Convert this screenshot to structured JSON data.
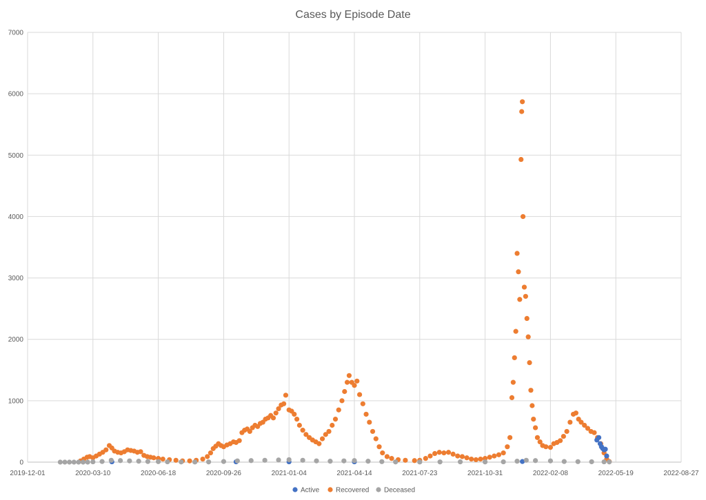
{
  "chart_data": {
    "type": "scatter",
    "title": "Cases by Episode Date",
    "x_ticks": [
      "2019-12-01",
      "2020-03-10",
      "2020-06-18",
      "2020-09-26",
      "2021-01-04",
      "2021-04-14",
      "2021-07-23",
      "2021-10-31",
      "2022-02-08",
      "2022-05-19",
      "2022-08-27"
    ],
    "y_ticks": [
      "0",
      "1000",
      "2000",
      "3000",
      "4000",
      "5000",
      "6000",
      "7000"
    ],
    "xlim": [
      "2019-12-01",
      "2022-08-27"
    ],
    "ylim": [
      0,
      7000
    ],
    "grid": true,
    "legend_position": "bottom",
    "colors": {
      "Active": "#4472c4",
      "Recovered": "#ed7d31",
      "Deceased": "#a5a5a5"
    },
    "series": [
      {
        "name": "Recovered",
        "points": [
          [
            "2020-02-20",
            20
          ],
          [
            "2020-02-25",
            50
          ],
          [
            "2020-03-01",
            80
          ],
          [
            "2020-03-05",
            90
          ],
          [
            "2020-03-10",
            70
          ],
          [
            "2020-03-15",
            100
          ],
          [
            "2020-03-20",
            130
          ],
          [
            "2020-03-25",
            160
          ],
          [
            "2020-03-30",
            200
          ],
          [
            "2020-04-04",
            270
          ],
          [
            "2020-04-08",
            230
          ],
          [
            "2020-04-12",
            180
          ],
          [
            "2020-04-17",
            160
          ],
          [
            "2020-04-22",
            150
          ],
          [
            "2020-04-27",
            170
          ],
          [
            "2020-05-02",
            200
          ],
          [
            "2020-05-07",
            190
          ],
          [
            "2020-05-12",
            180
          ],
          [
            "2020-05-17",
            160
          ],
          [
            "2020-05-22",
            170
          ],
          [
            "2020-05-27",
            110
          ],
          [
            "2020-06-01",
            90
          ],
          [
            "2020-06-06",
            80
          ],
          [
            "2020-06-11",
            70
          ],
          [
            "2020-06-18",
            60
          ],
          [
            "2020-06-25",
            50
          ],
          [
            "2020-07-05",
            40
          ],
          [
            "2020-07-15",
            30
          ],
          [
            "2020-07-25",
            20
          ],
          [
            "2020-08-05",
            20
          ],
          [
            "2020-08-15",
            30
          ],
          [
            "2020-08-25",
            50
          ],
          [
            "2020-09-01",
            90
          ],
          [
            "2020-09-06",
            150
          ],
          [
            "2020-09-10",
            220
          ],
          [
            "2020-09-14",
            260
          ],
          [
            "2020-09-18",
            300
          ],
          [
            "2020-09-22",
            270
          ],
          [
            "2020-09-26",
            250
          ],
          [
            "2020-10-01",
            280
          ],
          [
            "2020-10-06",
            300
          ],
          [
            "2020-10-11",
            330
          ],
          [
            "2020-10-15",
            320
          ],
          [
            "2020-10-20",
            350
          ],
          [
            "2020-10-24",
            480
          ],
          [
            "2020-10-28",
            520
          ],
          [
            "2020-11-01",
            540
          ],
          [
            "2020-11-05",
            500
          ],
          [
            "2020-11-09",
            560
          ],
          [
            "2020-11-13",
            600
          ],
          [
            "2020-11-17",
            580
          ],
          [
            "2020-11-21",
            630
          ],
          [
            "2020-11-25",
            650
          ],
          [
            "2020-11-29",
            700
          ],
          [
            "2020-12-03",
            720
          ],
          [
            "2020-12-07",
            760
          ],
          [
            "2020-12-11",
            720
          ],
          [
            "2020-12-15",
            800
          ],
          [
            "2020-12-19",
            870
          ],
          [
            "2020-12-23",
            930
          ],
          [
            "2020-12-27",
            950
          ],
          [
            "2020-12-30",
            1090
          ],
          [
            "2021-01-04",
            850
          ],
          [
            "2021-01-08",
            830
          ],
          [
            "2021-01-12",
            780
          ],
          [
            "2021-01-16",
            700
          ],
          [
            "2021-01-20",
            600
          ],
          [
            "2021-01-25",
            520
          ],
          [
            "2021-01-30",
            450
          ],
          [
            "2021-02-04",
            400
          ],
          [
            "2021-02-09",
            360
          ],
          [
            "2021-02-14",
            330
          ],
          [
            "2021-02-19",
            300
          ],
          [
            "2021-02-24",
            380
          ],
          [
            "2021-03-01",
            450
          ],
          [
            "2021-03-06",
            500
          ],
          [
            "2021-03-11",
            600
          ],
          [
            "2021-03-16",
            700
          ],
          [
            "2021-03-21",
            850
          ],
          [
            "2021-03-26",
            1000
          ],
          [
            "2021-03-30",
            1150
          ],
          [
            "2021-04-03",
            1300
          ],
          [
            "2021-04-06",
            1410
          ],
          [
            "2021-04-10",
            1300
          ],
          [
            "2021-04-14",
            1250
          ],
          [
            "2021-04-18",
            1320
          ],
          [
            "2021-04-22",
            1100
          ],
          [
            "2021-04-27",
            950
          ],
          [
            "2021-05-02",
            780
          ],
          [
            "2021-05-07",
            650
          ],
          [
            "2021-05-12",
            500
          ],
          [
            "2021-05-17",
            380
          ],
          [
            "2021-05-22",
            250
          ],
          [
            "2021-05-27",
            150
          ],
          [
            "2021-06-03",
            90
          ],
          [
            "2021-06-10",
            60
          ],
          [
            "2021-06-20",
            40
          ],
          [
            "2021-07-01",
            30
          ],
          [
            "2021-07-15",
            25
          ],
          [
            "2021-07-23",
            30
          ],
          [
            "2021-08-01",
            60
          ],
          [
            "2021-08-08",
            100
          ],
          [
            "2021-08-15",
            140
          ],
          [
            "2021-08-22",
            160
          ],
          [
            "2021-08-29",
            150
          ],
          [
            "2021-09-05",
            160
          ],
          [
            "2021-09-12",
            130
          ],
          [
            "2021-09-19",
            100
          ],
          [
            "2021-09-26",
            90
          ],
          [
            "2021-10-03",
            70
          ],
          [
            "2021-10-10",
            50
          ],
          [
            "2021-10-17",
            40
          ],
          [
            "2021-10-24",
            50
          ],
          [
            "2021-10-31",
            60
          ],
          [
            "2021-11-07",
            80
          ],
          [
            "2021-11-14",
            100
          ],
          [
            "2021-11-21",
            120
          ],
          [
            "2021-11-28",
            150
          ],
          [
            "2021-12-04",
            250
          ],
          [
            "2021-12-08",
            400
          ],
          [
            "2021-12-11",
            1050
          ],
          [
            "2021-12-13",
            1300
          ],
          [
            "2021-12-15",
            1700
          ],
          [
            "2021-12-17",
            2130
          ],
          [
            "2021-12-19",
            3400
          ],
          [
            "2021-12-21",
            3100
          ],
          [
            "2021-12-23",
            2650
          ],
          [
            "2021-12-25",
            4930
          ],
          [
            "2021-12-26",
            5710
          ],
          [
            "2021-12-27",
            5870
          ],
          [
            "2021-12-28",
            4000
          ],
          [
            "2021-12-30",
            2850
          ],
          [
            "2022-01-01",
            2700
          ],
          [
            "2022-01-03",
            2340
          ],
          [
            "2022-01-05",
            2040
          ],
          [
            "2022-01-07",
            1620
          ],
          [
            "2022-01-09",
            1170
          ],
          [
            "2022-01-11",
            920
          ],
          [
            "2022-01-13",
            700
          ],
          [
            "2022-01-16",
            560
          ],
          [
            "2022-01-19",
            400
          ],
          [
            "2022-01-23",
            330
          ],
          [
            "2022-01-27",
            270
          ],
          [
            "2022-02-01",
            250
          ],
          [
            "2022-02-08",
            240
          ],
          [
            "2022-02-13",
            300
          ],
          [
            "2022-02-18",
            320
          ],
          [
            "2022-02-23",
            350
          ],
          [
            "2022-02-28",
            420
          ],
          [
            "2022-03-05",
            500
          ],
          [
            "2022-03-10",
            650
          ],
          [
            "2022-03-15",
            780
          ],
          [
            "2022-03-19",
            800
          ],
          [
            "2022-03-23",
            700
          ],
          [
            "2022-03-27",
            650
          ],
          [
            "2022-04-01",
            600
          ],
          [
            "2022-04-06",
            550
          ],
          [
            "2022-04-11",
            500
          ],
          [
            "2022-04-16",
            480
          ],
          [
            "2022-04-21",
            400
          ],
          [
            "2022-04-26",
            300
          ],
          [
            "2022-05-01",
            150
          ],
          [
            "2022-05-05",
            50
          ],
          [
            "2022-05-09",
            10
          ]
        ]
      },
      {
        "name": "Active",
        "points": [
          [
            "2020-04-08",
            5
          ],
          [
            "2020-10-15",
            5
          ],
          [
            "2021-01-04",
            5
          ],
          [
            "2021-04-14",
            5
          ],
          [
            "2021-12-27",
            10
          ],
          [
            "2022-04-20",
            360
          ],
          [
            "2022-04-23",
            400
          ],
          [
            "2022-04-25",
            300
          ],
          [
            "2022-04-27",
            250
          ],
          [
            "2022-04-29",
            220
          ],
          [
            "2022-05-01",
            200
          ],
          [
            "2022-05-03",
            210
          ],
          [
            "2022-05-05",
            100
          ]
        ]
      },
      {
        "name": "Deceased",
        "points": [
          [
            "2020-01-20",
            0
          ],
          [
            "2020-01-27",
            0
          ],
          [
            "2020-02-03",
            0
          ],
          [
            "2020-02-10",
            0
          ],
          [
            "2020-02-17",
            0
          ],
          [
            "2020-02-24",
            0
          ],
          [
            "2020-03-02",
            0
          ],
          [
            "2020-03-10",
            5
          ],
          [
            "2020-03-24",
            10
          ],
          [
            "2020-04-07",
            30
          ],
          [
            "2020-04-21",
            25
          ],
          [
            "2020-05-05",
            20
          ],
          [
            "2020-05-19",
            15
          ],
          [
            "2020-06-02",
            10
          ],
          [
            "2020-06-18",
            8
          ],
          [
            "2020-07-02",
            5
          ],
          [
            "2020-07-23",
            3
          ],
          [
            "2020-08-13",
            2
          ],
          [
            "2020-09-03",
            3
          ],
          [
            "2020-09-26",
            10
          ],
          [
            "2020-10-17",
            20
          ],
          [
            "2020-11-07",
            25
          ],
          [
            "2020-11-28",
            30
          ],
          [
            "2020-12-19",
            35
          ],
          [
            "2021-01-04",
            40
          ],
          [
            "2021-01-25",
            30
          ],
          [
            "2021-02-15",
            20
          ],
          [
            "2021-03-08",
            15
          ],
          [
            "2021-03-29",
            20
          ],
          [
            "2021-04-14",
            25
          ],
          [
            "2021-05-05",
            15
          ],
          [
            "2021-05-26",
            8
          ],
          [
            "2021-06-16",
            3
          ],
          [
            "2021-07-23",
            2
          ],
          [
            "2021-08-23",
            3
          ],
          [
            "2021-09-23",
            4
          ],
          [
            "2021-10-31",
            3
          ],
          [
            "2021-11-28",
            5
          ],
          [
            "2021-12-19",
            15
          ],
          [
            "2022-01-02",
            30
          ],
          [
            "2022-01-16",
            25
          ],
          [
            "2022-02-08",
            20
          ],
          [
            "2022-03-01",
            10
          ],
          [
            "2022-03-22",
            8
          ],
          [
            "2022-04-12",
            6
          ],
          [
            "2022-05-01",
            5
          ],
          [
            "2022-05-09",
            3
          ]
        ]
      }
    ]
  }
}
